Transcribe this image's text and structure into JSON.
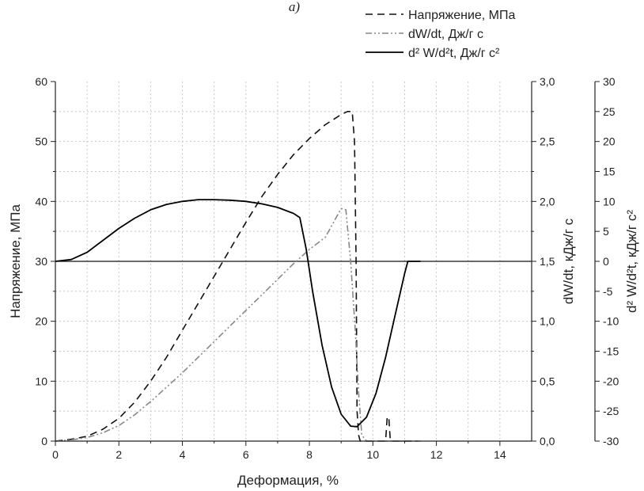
{
  "panel_label": "а)",
  "chart_data": {
    "type": "line",
    "title": "",
    "xlabel": "Деформация, %",
    "xlim": [
      0,
      15
    ],
    "x_ticks": [
      "0",
      "2",
      "4",
      "6",
      "8",
      "10",
      "12",
      "14"
    ],
    "grid": true,
    "legend_position": "top-right",
    "axes": {
      "y_left": {
        "label": "Напряжение, МПа",
        "lim": [
          0,
          60
        ],
        "ticks": [
          "0",
          "10",
          "20",
          "30",
          "40",
          "50",
          "60"
        ]
      },
      "y_right1": {
        "label": "dW/dt, кДж/г с",
        "lim": [
          0,
          3
        ],
        "ticks": [
          "0,0",
          "0,5",
          "1,0",
          "1,5",
          "2,0",
          "2,5",
          "3,0"
        ]
      },
      "y_right2": {
        "label": "d² W/d²t, кДж/г с²",
        "lim": [
          -30,
          30
        ],
        "ticks": [
          "-30",
          "-25",
          "-20",
          "-15",
          "-10",
          "-5",
          "0",
          "5",
          "10",
          "15",
          "20",
          "25",
          "30"
        ]
      }
    },
    "series": [
      {
        "name": "Напряжение,  МПа",
        "axis": "y_left",
        "style": "dashed",
        "color": "#111111",
        "points": [
          [
            0,
            0
          ],
          [
            0.5,
            0.3
          ],
          [
            1,
            0.8
          ],
          [
            1.5,
            2
          ],
          [
            2,
            3.8
          ],
          [
            2.5,
            6.5
          ],
          [
            3,
            10
          ],
          [
            3.5,
            14
          ],
          [
            4,
            18.5
          ],
          [
            4.5,
            23
          ],
          [
            5,
            27.5
          ],
          [
            5.5,
            32
          ],
          [
            6,
            36.5
          ],
          [
            6.5,
            40.8
          ],
          [
            7,
            44.5
          ],
          [
            7.5,
            47.8
          ],
          [
            8,
            50.5
          ],
          [
            8.5,
            52.8
          ],
          [
            9,
            54.5
          ],
          [
            9.2,
            55
          ],
          [
            9.35,
            55
          ],
          [
            9.42,
            50
          ],
          [
            9.47,
            30
          ],
          [
            9.5,
            5
          ],
          [
            9.55,
            1
          ],
          [
            9.6,
            0
          ],
          [
            10.4,
            0
          ],
          [
            10.45,
            4
          ],
          [
            10.5,
            4
          ],
          [
            10.55,
            0
          ],
          [
            11.4,
            0
          ]
        ]
      },
      {
        "name": "dW/dt,  Дж/г с",
        "axis": "y_right1",
        "style": "dash-dot-dot",
        "color": "#888888",
        "points": [
          [
            0,
            0
          ],
          [
            0.5,
            0.01
          ],
          [
            1,
            0.03
          ],
          [
            1.5,
            0.07
          ],
          [
            2,
            0.13
          ],
          [
            2.5,
            0.22
          ],
          [
            3,
            0.33
          ],
          [
            3.5,
            0.45
          ],
          [
            4,
            0.57
          ],
          [
            4.5,
            0.7
          ],
          [
            5,
            0.83
          ],
          [
            5.5,
            0.96
          ],
          [
            6,
            1.09
          ],
          [
            6.5,
            1.22
          ],
          [
            7,
            1.35
          ],
          [
            7.5,
            1.48
          ],
          [
            8,
            1.6
          ],
          [
            8.5,
            1.7
          ],
          [
            9,
            1.94
          ],
          [
            9.15,
            1.93
          ],
          [
            9.3,
            1.5
          ],
          [
            9.45,
            0.9
          ],
          [
            9.55,
            0.4
          ],
          [
            9.65,
            0.05
          ],
          [
            9.8,
            0
          ],
          [
            11.5,
            0
          ]
        ]
      },
      {
        "name": "d² W/d²t,  Дж/г с²",
        "axis": "y_right2",
        "style": "solid",
        "color": "#000000",
        "points": [
          [
            0,
            0
          ],
          [
            0.5,
            0.3
          ],
          [
            1,
            1.5
          ],
          [
            1.5,
            3.5
          ],
          [
            2,
            5.5
          ],
          [
            2.5,
            7.2
          ],
          [
            3,
            8.6
          ],
          [
            3.5,
            9.5
          ],
          [
            4,
            10
          ],
          [
            4.5,
            10.3
          ],
          [
            5,
            10.3
          ],
          [
            5.5,
            10.2
          ],
          [
            6,
            10
          ],
          [
            6.5,
            9.6
          ],
          [
            7,
            9
          ],
          [
            7.5,
            8
          ],
          [
            7.7,
            7.3
          ],
          [
            7.9,
            2
          ],
          [
            8.1,
            -5
          ],
          [
            8.4,
            -14
          ],
          [
            8.7,
            -21
          ],
          [
            9,
            -25.5
          ],
          [
            9.3,
            -27.5
          ],
          [
            9.5,
            -27.6
          ],
          [
            9.8,
            -26
          ],
          [
            10.1,
            -22
          ],
          [
            10.4,
            -16
          ],
          [
            10.7,
            -9
          ],
          [
            11,
            -2
          ],
          [
            11.1,
            0
          ],
          [
            11.5,
            0
          ]
        ]
      }
    ],
    "reference_lines": [
      {
        "axis": "y_right2",
        "value": 0
      }
    ]
  }
}
